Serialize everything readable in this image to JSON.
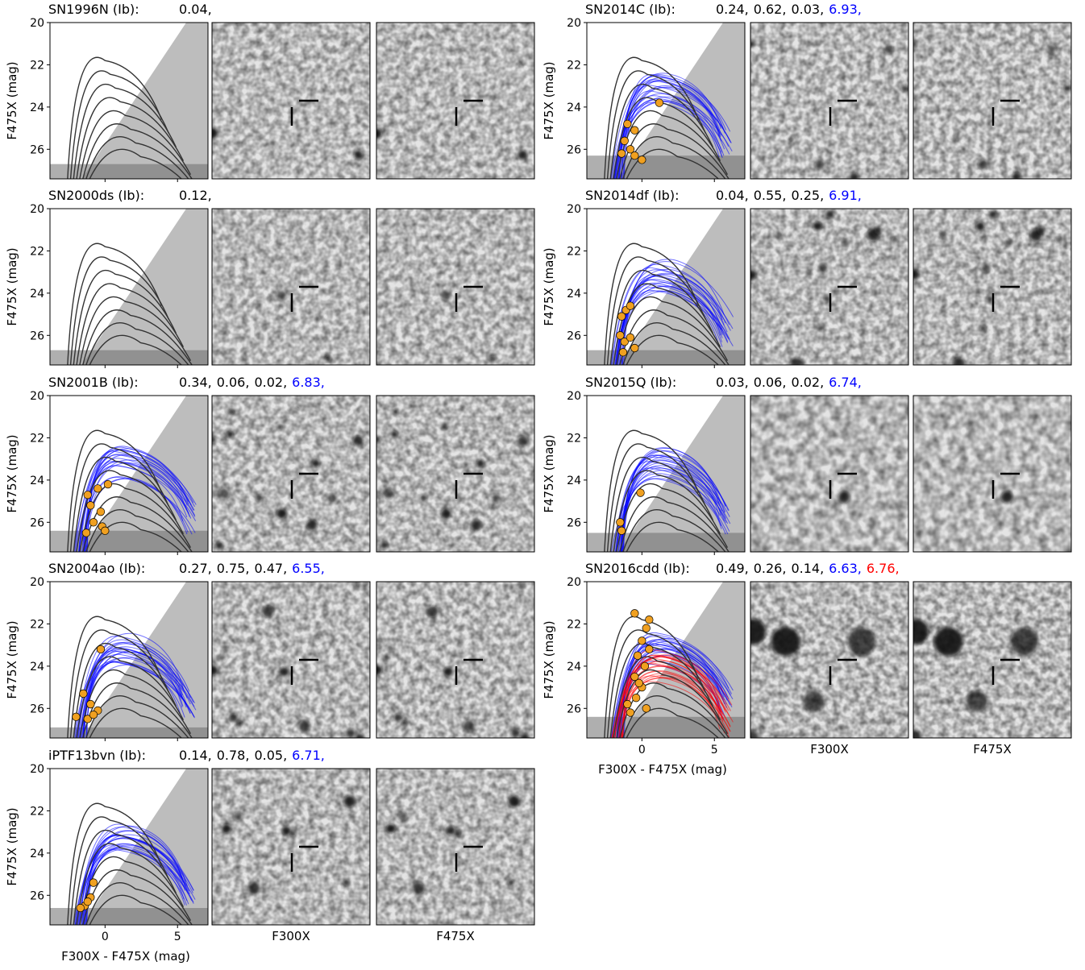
{
  "axes": {
    "ylabel": "F475X (mag)",
    "xlabel": "F300X - F475X (mag)",
    "xlim": [
      -3.8,
      7.1
    ],
    "ylim": [
      20,
      27.4
    ],
    "y_inverted": true,
    "xticks": [
      0,
      5
    ],
    "yticks": [
      20,
      22,
      24,
      26
    ],
    "image_labels": [
      "F300X",
      "F475X"
    ]
  },
  "panels": [
    {
      "title": "SN1996N (Ib):",
      "values": [
        {
          "text": "0.04,",
          "color": "#000000"
        }
      ],
      "limit": 26.7,
      "points": []
    },
    {
      "title": "SN2000ds (Ib):",
      "values": [
        {
          "text": "0.12,",
          "color": "#000000"
        }
      ],
      "limit": 26.7,
      "points": []
    },
    {
      "title": "SN2001B (Ib):",
      "values": [
        {
          "text": "0.34,",
          "color": "#000000"
        },
        {
          "text": "0.06,",
          "color": "#000000"
        },
        {
          "text": "0.02,",
          "color": "#000000"
        },
        {
          "text": "6.83,",
          "color": "#0000ff"
        }
      ],
      "limit": 26.4,
      "points": [
        [
          -1.2,
          24.7
        ],
        [
          -0.5,
          24.4
        ],
        [
          0.2,
          24.2
        ],
        [
          -1,
          25.2
        ],
        [
          -0.3,
          25.5
        ],
        [
          -0.8,
          26
        ],
        [
          -0.2,
          26.2
        ],
        [
          -1.3,
          26.5
        ],
        [
          0,
          26.4
        ]
      ]
    },
    {
      "title": "SN2004ao (Ib):",
      "values": [
        {
          "text": "0.27,",
          "color": "#000000"
        },
        {
          "text": "0.75,",
          "color": "#000000"
        },
        {
          "text": "0.47,",
          "color": "#000000"
        },
        {
          "text": "6.55,",
          "color": "#0000ff"
        }
      ],
      "limit": 26.9,
      "points": [
        [
          -0.3,
          23.2
        ],
        [
          -1.5,
          25.3
        ],
        [
          -1,
          25.8
        ],
        [
          -0.5,
          26.1
        ],
        [
          -1.2,
          26.5
        ],
        [
          -2,
          26.4
        ],
        [
          -0.8,
          26.3
        ]
      ]
    },
    {
      "title": "iPTF13bvn (Ib):",
      "values": [
        {
          "text": "0.14,",
          "color": "#000000"
        },
        {
          "text": "0.78,",
          "color": "#000000"
        },
        {
          "text": "0.05,",
          "color": "#000000"
        },
        {
          "text": "6.71,",
          "color": "#0000ff"
        }
      ],
      "limit": 26.6,
      "points": [
        [
          -0.8,
          25.4
        ],
        [
          -1,
          26.1
        ],
        [
          -1.4,
          26.5
        ],
        [
          -1.7,
          26.6
        ],
        [
          -1.2,
          26.3
        ]
      ]
    },
    {
      "title": "SN2014C (Ib):",
      "values": [
        {
          "text": "0.24,",
          "color": "#000000"
        },
        {
          "text": "0.62,",
          "color": "#000000"
        },
        {
          "text": "0.03,",
          "color": "#000000"
        },
        {
          "text": "6.93,",
          "color": "#0000ff"
        }
      ],
      "limit": 26.3,
      "points": [
        [
          1.2,
          23.8
        ],
        [
          -1,
          24.8
        ],
        [
          -0.5,
          25.1
        ],
        [
          -1.2,
          25.6
        ],
        [
          -0.8,
          26
        ],
        [
          -1.4,
          26.2
        ],
        [
          -0.5,
          26.3
        ],
        [
          0,
          26.5
        ]
      ]
    },
    {
      "title": "SN2014df (Ib):",
      "values": [
        {
          "text": "0.04,",
          "color": "#000000"
        },
        {
          "text": "0.55,",
          "color": "#000000"
        },
        {
          "text": "0.25,",
          "color": "#000000"
        },
        {
          "text": "6.91,",
          "color": "#0000ff"
        }
      ],
      "limit": 26.7,
      "points": [
        [
          -1.4,
          25.1
        ],
        [
          -1.1,
          24.8
        ],
        [
          -0.8,
          24.6
        ],
        [
          -1.5,
          26
        ],
        [
          -1.2,
          26.3
        ],
        [
          -0.8,
          26.1
        ],
        [
          -1.3,
          26.8
        ],
        [
          -0.5,
          26.6
        ]
      ]
    },
    {
      "title": "SN2015Q (Ib):",
      "values": [
        {
          "text": "0.03,",
          "color": "#000000"
        },
        {
          "text": "0.06,",
          "color": "#000000"
        },
        {
          "text": "0.02,",
          "color": "#000000"
        },
        {
          "text": "6.74,",
          "color": "#0000ff"
        }
      ],
      "limit": 26.5,
      "points": [
        [
          -0.1,
          24.6
        ],
        [
          -1.5,
          26
        ],
        [
          -1.4,
          26.4
        ]
      ]
    },
    {
      "title": "SN2016cdd (Ib):",
      "values": [
        {
          "text": "0.49,",
          "color": "#000000"
        },
        {
          "text": "0.26,",
          "color": "#000000"
        },
        {
          "text": "0.14,",
          "color": "#000000"
        },
        {
          "text": "6.63,",
          "color": "#0000ff"
        },
        {
          "text": "6.76,",
          "color": "#ff0000"
        }
      ],
      "limit": 26.4,
      "points": [
        [
          -0.5,
          21.5
        ],
        [
          0.5,
          21.8
        ],
        [
          0.3,
          22.2
        ],
        [
          0,
          22.8
        ],
        [
          -0.3,
          23.5
        ],
        [
          0.2,
          24
        ],
        [
          -0.5,
          24.5
        ],
        [
          0,
          25
        ],
        [
          -0.4,
          25.5
        ],
        [
          -1,
          25.8
        ],
        [
          0.3,
          26
        ],
        [
          -0.8,
          26.2
        ],
        [
          -0.2,
          24.8
        ],
        [
          0.5,
          23.2
        ]
      ]
    }
  ]
}
